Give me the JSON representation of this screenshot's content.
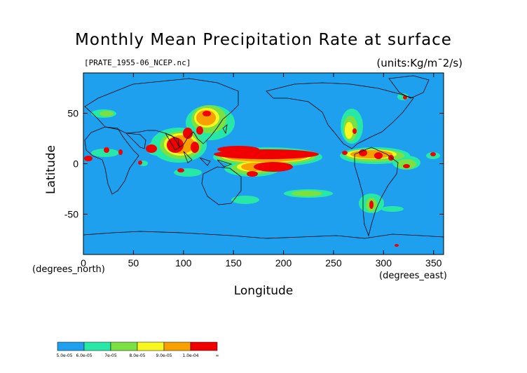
{
  "map": {
    "title": "Monthly Mean Precipitation Rate at surface",
    "subtitle": "[PRATE_1955-06_NCEP.nc]",
    "units": "(units:Kg/m¯2/s)",
    "ylabel": "Latitude",
    "xlabel": "Longitude",
    "x_unit_note": "(degrees_east)",
    "y_unit_note": "(degrees_north)",
    "x_ticks": [
      "0",
      "50",
      "100",
      "150",
      "200",
      "250",
      "300",
      "350"
    ],
    "y_ticks": [
      "50",
      "0",
      "-50"
    ],
    "colorbar_labels": [
      "5.0e-05",
      "6.0e-05",
      "7e-05",
      "8.0e-05",
      "9.0e-05",
      "1.0e-04",
      "∞"
    ],
    "colorbar_colors": [
      "#1ea0ef",
      "#28e8a8",
      "#7ce040",
      "#f8f820",
      "#f8a000",
      "#f00000"
    ],
    "ocean_color": "#1ea0ef"
  }
}
